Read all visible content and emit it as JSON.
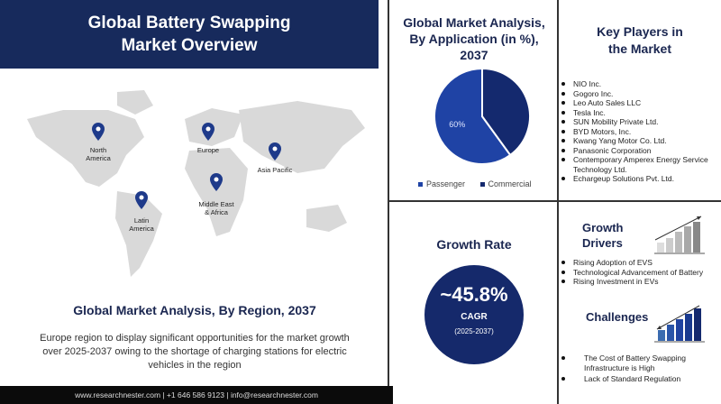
{
  "header": {
    "title_line1": "Global Battery Swapping",
    "title_line2": "Market Overview"
  },
  "map": {
    "regions": [
      {
        "label1": "North",
        "label2": "America"
      },
      {
        "label1": "Europe",
        "label2": ""
      },
      {
        "label1": "Asia Pacific",
        "label2": ""
      },
      {
        "label1": "Middle East",
        "label2": "& Africa"
      },
      {
        "label1": "Latin",
        "label2": "America"
      }
    ],
    "pin_color": "#1e3a8a"
  },
  "region": {
    "title": "Global Market Analysis, By Region, 2037",
    "description": "Europe region to display significant opportunities for the market growth over 2025-2037 owing to the shortage of charging stations for electric vehicles in the region"
  },
  "footer": {
    "text": "www.researchnester.com | +1 646 586 9123 | info@researchnester.com"
  },
  "application": {
    "title_line1": "Global Market Analysis,",
    "title_line2": "By Application (in %),",
    "title_line3": "2037"
  },
  "chart_data": {
    "type": "pie",
    "title": "Global Market Analysis, By Application (in %), 2037",
    "slices": [
      {
        "name": "Passenger",
        "value": 60,
        "label": "60%",
        "color": "#1f43a5"
      },
      {
        "name": "Commercial",
        "value": 40,
        "label": "",
        "color": "#14296e"
      }
    ],
    "legend_position": "bottom"
  },
  "key_players": {
    "title_line1": "Key Players in",
    "title_line2": "the Market",
    "items": [
      "NIO Inc.",
      "Gogoro Inc.",
      "Leo Auto Sales LLC",
      "Tesla Inc.",
      "SUN Mobility Private Ltd.",
      "BYD Motors, Inc.",
      "Kwang Yang Motor Co. Ltd.",
      "Panasonic Corporation",
      "Contemporary Amperex Energy Service Technology Ltd.",
      "Echargeup Solutions Pvt. Ltd."
    ]
  },
  "growth": {
    "title": "Growth Rate",
    "value": "~45.8%",
    "label": "CAGR",
    "period": "(2025-2037)",
    "circle_color": "#15296b"
  },
  "drivers": {
    "title_line1": "Growth",
    "title_line2": "Drivers",
    "items": [
      "Rising Adoption of EVS",
      "Technological Advancement of Battery",
      "Rising Investment in EVs"
    ]
  },
  "challenges": {
    "title": "Challenges",
    "items": [
      "The Cost of Battery Swapping Infrastructure is High",
      "Lack of Standard Regulation"
    ]
  }
}
